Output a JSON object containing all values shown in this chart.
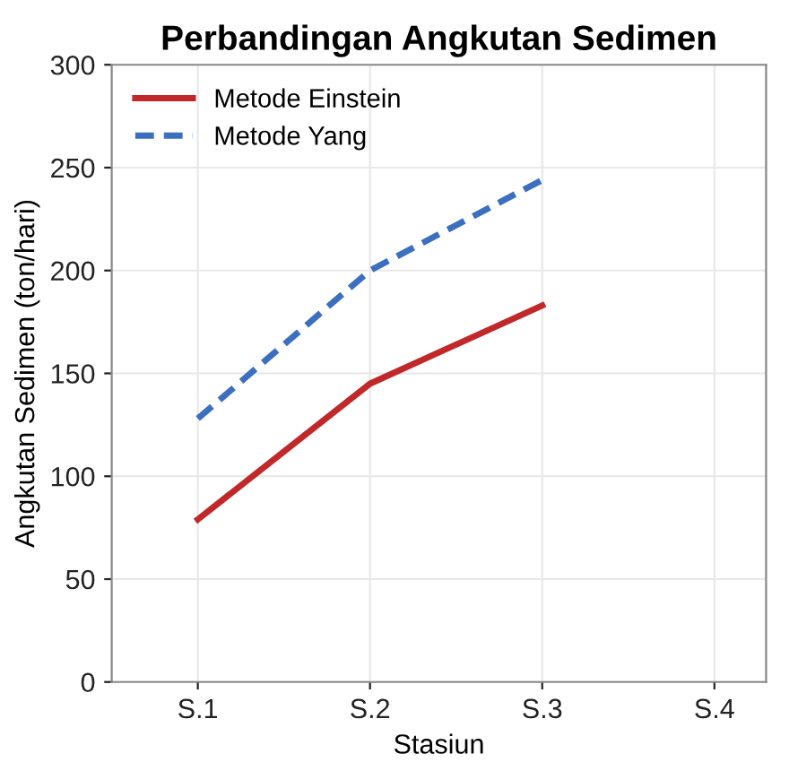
{
  "chart_data": {
    "type": "line",
    "title": "Perbandingan Angkutan Sedimen",
    "xlabel": "Stasiun",
    "ylabel": "Angkutan Sedimen (ton/hari)",
    "categories": [
      "S.1",
      "S.2",
      "S.3",
      "S.4"
    ],
    "series": [
      {
        "name": "Metode Einstein",
        "color": "#c0282a",
        "values": [
          79,
          145,
          183,
          null
        ],
        "line_style": "solid"
      },
      {
        "name": "Metode Yang",
        "color": "#3d6fbf",
        "values": [
          128,
          200,
          244,
          null
        ],
        "line_style": "dashed"
      }
    ],
    "ylim": [
      0,
      300
    ],
    "yticks": [
      0,
      50,
      100,
      150,
      200,
      250,
      300
    ],
    "grid": true,
    "legend": "top left",
    "marker": "none"
  }
}
